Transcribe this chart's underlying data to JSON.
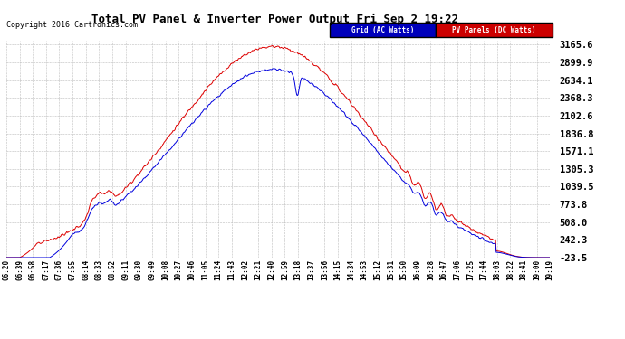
{
  "title": "Total PV Panel & Inverter Power Output Fri Sep 2 19:22",
  "copyright": "Copyright 2016 Cartronics.com",
  "bg_color": "#ffffff",
  "plot_bg_color": "#ffffff",
  "grid_color": "#bbbbbb",
  "y_ticks": [
    -23.5,
    242.3,
    508.0,
    773.8,
    1039.5,
    1305.3,
    1571.1,
    1836.8,
    2102.6,
    2368.3,
    2634.1,
    2899.9,
    3165.6
  ],
  "legend_grid_label": "Grid (AC Watts)",
  "legend_pv_label": "PV Panels (DC Watts)",
  "legend_grid_bg": "#0000bb",
  "legend_pv_bg": "#cc0000",
  "line_grid_color": "#0000dd",
  "line_pv_color": "#dd0000",
  "x_labels": [
    "06:20",
    "06:39",
    "06:58",
    "07:17",
    "07:36",
    "07:55",
    "08:14",
    "08:33",
    "08:52",
    "09:11",
    "09:30",
    "09:49",
    "10:08",
    "10:27",
    "10:46",
    "11:05",
    "11:24",
    "11:43",
    "12:02",
    "12:21",
    "12:40",
    "12:59",
    "13:18",
    "13:37",
    "13:56",
    "14:15",
    "14:34",
    "14:53",
    "15:12",
    "15:31",
    "15:50",
    "16:09",
    "16:28",
    "16:47",
    "17:06",
    "17:25",
    "17:44",
    "18:03",
    "18:22",
    "18:41",
    "19:00",
    "19:19"
  ],
  "n_points": 800
}
